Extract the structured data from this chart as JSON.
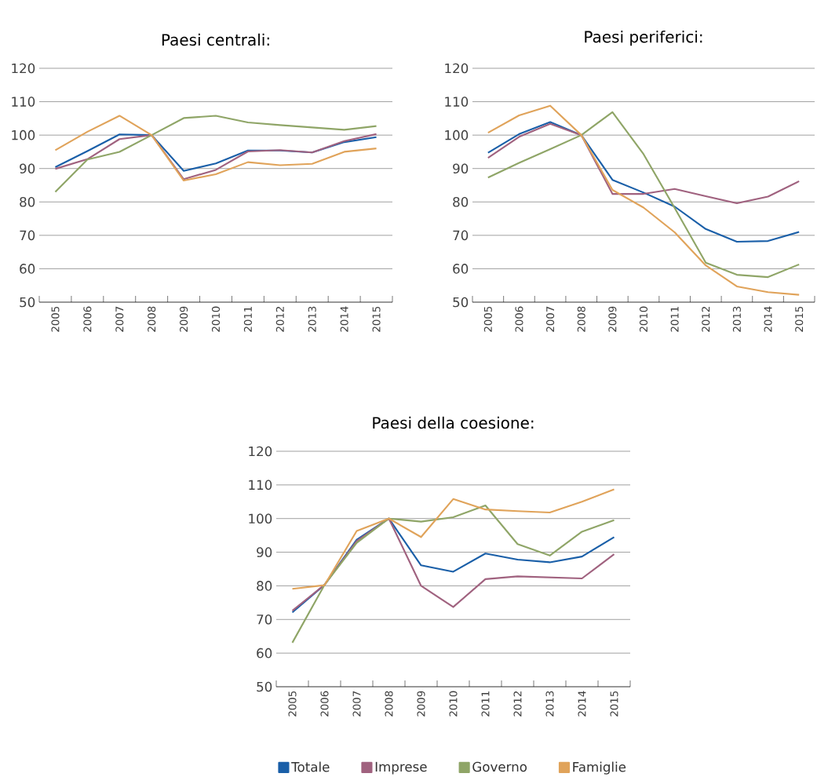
{
  "chart_data": [
    {
      "type": "line",
      "title": "Paesi centrali:",
      "categories": [
        "2005",
        "2006",
        "2007",
        "2008",
        "2009",
        "2010",
        "2011",
        "2012",
        "2013",
        "2014",
        "2015"
      ],
      "ylim": [
        50,
        120
      ],
      "yticks": [
        50,
        60,
        70,
        80,
        90,
        100,
        110,
        120
      ],
      "grid": "y",
      "marker": "none",
      "line_style": "solid",
      "series": [
        {
          "color": "#1a5fa8",
          "values": [
            90.4,
            95.2,
            100.2,
            100,
            89.3,
            91.5,
            95.4,
            95.4,
            94.8,
            97.9,
            99.4
          ]
        },
        {
          "color": "#a0627f",
          "values": [
            89.9,
            92.8,
            98.8,
            100,
            86.8,
            89.6,
            95.1,
            95.5,
            94.8,
            98.2,
            100.3
          ]
        },
        {
          "color": "#8fa567",
          "values": [
            83.0,
            92.7,
            95.0,
            100,
            105.1,
            105.8,
            103.8,
            103.0,
            102.3,
            101.6,
            102.7
          ]
        },
        {
          "color": "#e0a35a",
          "values": [
            95.5,
            101.0,
            105.8,
            100,
            86.4,
            88.3,
            91.9,
            91.0,
            91.4,
            95.0,
            96.0
          ]
        }
      ]
    },
    {
      "type": "line",
      "title": "Paesi periferici:",
      "categories": [
        "2005",
        "2006",
        "2007",
        "2008",
        "2009",
        "2010",
        "2011",
        "2012",
        "2013",
        "2014",
        "2015"
      ],
      "ylim": [
        50,
        120
      ],
      "yticks": [
        50,
        60,
        70,
        80,
        90,
        100,
        110,
        120
      ],
      "grid": "y",
      "marker": "none",
      "line_style": "solid",
      "series": [
        {
          "color": "#1a5fa8",
          "values": [
            94.7,
            100.3,
            103.9,
            100,
            86.6,
            82.8,
            78.6,
            71.9,
            68.1,
            68.3,
            71.0
          ]
        },
        {
          "color": "#a0627f",
          "values": [
            93.2,
            99.5,
            103.4,
            100,
            82.4,
            82.4,
            83.9,
            81.7,
            79.6,
            81.6,
            86.2
          ]
        },
        {
          "color": "#8fa567",
          "values": [
            87.3,
            91.7,
            95.8,
            100,
            106.9,
            94.3,
            78.2,
            61.8,
            58.2,
            57.5,
            61.3
          ]
        },
        {
          "color": "#e0a35a",
          "values": [
            100.7,
            105.9,
            108.8,
            100,
            83.6,
            78.3,
            70.9,
            61.0,
            54.7,
            53.0,
            52.2
          ]
        }
      ]
    },
    {
      "type": "line",
      "title": "Paesi della coesione:",
      "categories": [
        "2005",
        "2006",
        "2007",
        "2008",
        "2009",
        "2010",
        "2011",
        "2012",
        "2013",
        "2014",
        "2015"
      ],
      "ylim": [
        50,
        120
      ],
      "yticks": [
        50,
        60,
        70,
        80,
        90,
        100,
        110,
        120
      ],
      "grid": "y",
      "marker": "none",
      "line_style": "solid",
      "legend": "bottom",
      "series": [
        {
          "name": "Totale",
          "color": "#1a5fa8",
          "values": [
            72.1,
            80.3,
            93.7,
            100,
            86.1,
            84.2,
            89.6,
            87.8,
            87.0,
            88.7,
            94.5
          ]
        },
        {
          "name": "Imprese",
          "color": "#a0627f",
          "values": [
            72.6,
            80.3,
            93.3,
            100,
            80.0,
            73.7,
            82.0,
            82.8,
            82.5,
            82.2,
            89.4
          ]
        },
        {
          "name": "Governo",
          "color": "#8fa567",
          "values": [
            63.1,
            80.3,
            92.8,
            100,
            99.1,
            100.4,
            103.9,
            92.4,
            89.0,
            96.1,
            99.5
          ]
        },
        {
          "name": "Famiglie",
          "color": "#e0a35a",
          "values": [
            79.1,
            80.2,
            96.3,
            100,
            94.5,
            105.8,
            102.7,
            102.2,
            101.8,
            105.0,
            108.7
          ]
        }
      ]
    }
  ]
}
